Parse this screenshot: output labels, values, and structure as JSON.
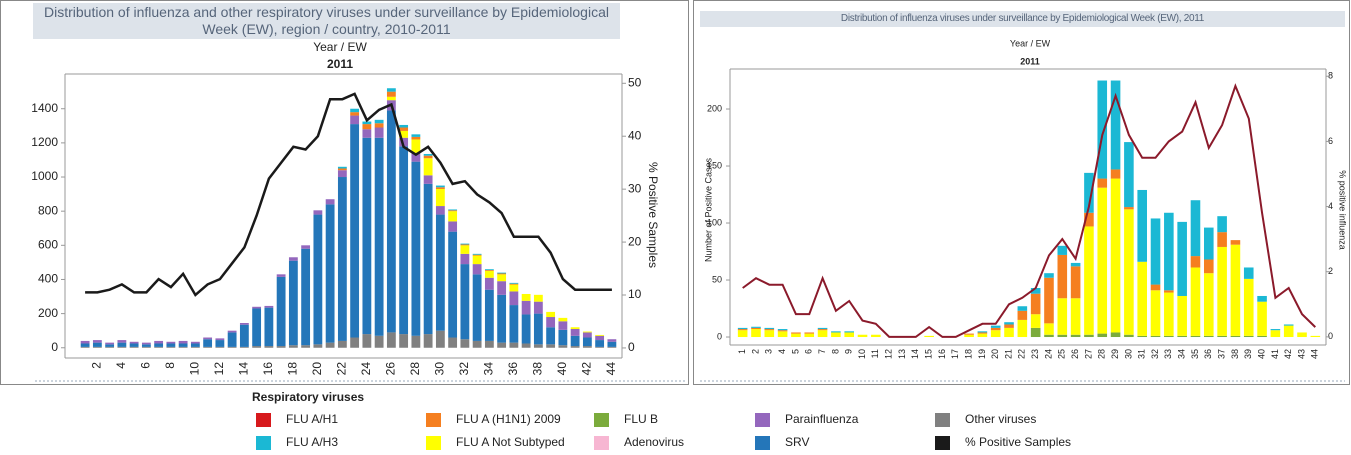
{
  "chart_data": [
    {
      "type": "bar",
      "title": "Distribution of influenza and other respiratory viruses under surveillance by Epidemiological Week (EW), region / country, 2010-2011",
      "header": "Year / EW",
      "subheader": "2011",
      "y2label": "% Positive Samples",
      "categories": [
        null,
        "2",
        null,
        "4",
        null,
        "6",
        null,
        "8",
        null,
        "10",
        null,
        "12",
        null,
        "14",
        null,
        "16",
        null,
        "18",
        null,
        "20",
        null,
        "22",
        null,
        "24",
        null,
        "26",
        null,
        "28",
        null,
        "30",
        null,
        "32",
        null,
        "34",
        null,
        "36",
        null,
        "38",
        null,
        "40",
        null,
        "42",
        null,
        "44"
      ],
      "ylim": [
        -60,
        1580
      ],
      "yticks": [
        0,
        200,
        400,
        600,
        800,
        1000,
        1200,
        1400
      ],
      "y2lim": [
        -1.9,
        51
      ],
      "y2ticks": [
        0,
        10,
        20,
        30,
        40,
        50
      ],
      "series": [
        {
          "name": "Other viruses",
          "color": "#808080",
          "values": [
            5,
            5,
            5,
            5,
            5,
            5,
            5,
            5,
            5,
            5,
            5,
            5,
            5,
            5,
            10,
            10,
            10,
            15,
            15,
            20,
            30,
            40,
            60,
            80,
            70,
            90,
            80,
            70,
            80,
            100,
            60,
            50,
            40,
            40,
            30,
            30,
            25,
            20,
            20,
            15,
            10,
            10,
            5,
            5
          ]
        },
        {
          "name": "SRV",
          "color": "#2476b9",
          "values": [
            20,
            25,
            15,
            25,
            20,
            15,
            20,
            20,
            20,
            20,
            45,
            40,
            85,
            130,
            220,
            225,
            405,
            495,
            565,
            760,
            810,
            960,
            1250,
            1150,
            1160,
            1300,
            1100,
            1020,
            880,
            680,
            620,
            440,
            390,
            300,
            280,
            220,
            170,
            180,
            100,
            90,
            60,
            50,
            40,
            30
          ]
        },
        {
          "name": "Parainfluenza",
          "color": "#9467bd",
          "values": [
            15,
            15,
            10,
            15,
            10,
            10,
            15,
            10,
            15,
            10,
            10,
            10,
            10,
            10,
            10,
            10,
            15,
            20,
            20,
            25,
            30,
            40,
            50,
            50,
            60,
            60,
            50,
            50,
            50,
            50,
            60,
            60,
            60,
            70,
            80,
            80,
            80,
            70,
            60,
            50,
            40,
            30,
            25,
            15
          ]
        },
        {
          "name": "FLU A Not Subtyped",
          "color": "#ffff00",
          "values": [
            0,
            0,
            0,
            0,
            0,
            0,
            0,
            0,
            0,
            0,
            0,
            0,
            0,
            0,
            0,
            0,
            0,
            0,
            0,
            0,
            0,
            0,
            0,
            0,
            0,
            20,
            40,
            80,
            100,
            100,
            60,
            50,
            50,
            40,
            40,
            40,
            40,
            40,
            30,
            20,
            10,
            5,
            5,
            0
          ]
        },
        {
          "name": "FLU A (H1N1) 2009",
          "color": "#f57f20",
          "values": [
            0,
            0,
            0,
            0,
            0,
            0,
            0,
            0,
            0,
            0,
            0,
            0,
            0,
            0,
            0,
            0,
            0,
            0,
            0,
            0,
            0,
            10,
            20,
            30,
            25,
            30,
            20,
            15,
            15,
            10,
            5,
            5,
            5,
            5,
            5,
            5,
            0,
            0,
            0,
            0,
            0,
            0,
            0,
            0
          ]
        },
        {
          "name": "FLU A/H3",
          "color": "#1bb8d4",
          "values": [
            0,
            0,
            0,
            0,
            0,
            0,
            0,
            0,
            0,
            0,
            0,
            0,
            0,
            0,
            0,
            0,
            0,
            0,
            0,
            0,
            0,
            10,
            20,
            15,
            20,
            20,
            15,
            15,
            10,
            10,
            5,
            5,
            5,
            5,
            5,
            5,
            0,
            0,
            0,
            0,
            0,
            0,
            0,
            0
          ]
        },
        {
          "name": "% Positive Samples",
          "type": "line",
          "axis": "y2",
          "color": "#1a1a1a",
          "values": [
            10.5,
            10.5,
            11,
            12,
            10.5,
            10.5,
            13,
            11.5,
            14,
            10,
            12,
            13,
            16,
            19,
            25,
            32,
            35,
            38,
            37.5,
            40,
            47,
            47,
            48,
            43,
            45,
            46,
            38,
            36.5,
            38,
            35,
            31,
            31.5,
            29,
            27.5,
            25.5,
            21,
            21,
            21,
            18,
            13,
            11,
            11,
            11,
            11
          ]
        }
      ]
    },
    {
      "type": "bar",
      "title": "Distribution of influenza viruses under surveillance by Epidemiological Week (EW), 2011",
      "header": "Year / EW",
      "subheader": "2011",
      "ylabel": "Number of Positive Cases",
      "y2label": "% positive influenza",
      "categories": [
        "1",
        "2",
        "3",
        "4",
        "5",
        "6",
        "7",
        "8",
        "9",
        "10",
        "11",
        "12",
        "13",
        "14",
        "15",
        "16",
        "17",
        "18",
        "19",
        "20",
        "21",
        "22",
        "23",
        "24",
        "25",
        "26",
        "27",
        "28",
        "29",
        "30",
        "31",
        "32",
        "33",
        "34",
        "35",
        "36",
        "37",
        "38",
        "39",
        "40",
        "41",
        "42",
        "43",
        "44"
      ],
      "ylim": [
        -7,
        231.6
      ],
      "yticks": [
        0,
        50,
        100,
        150,
        200
      ],
      "y2lim": [
        -0.25,
        8.1
      ],
      "y2ticks": [
        0,
        2,
        4,
        6,
        8
      ],
      "series": [
        {
          "name": "FLU B",
          "color": "#7bab3c",
          "values": [
            0,
            0,
            0,
            0,
            0,
            0,
            0,
            0,
            0,
            0,
            0,
            0,
            0,
            0,
            0,
            0,
            0,
            0,
            0,
            0,
            0,
            0,
            8,
            2,
            2,
            2,
            2,
            3,
            4,
            2,
            1,
            1,
            1,
            1,
            1,
            1,
            1,
            1,
            1,
            1,
            0,
            0,
            0,
            0
          ]
        },
        {
          "name": "FLU A Not Subtyped",
          "color": "#ffff00",
          "values": [
            6,
            7,
            6,
            5,
            3,
            3,
            6,
            4,
            4,
            2,
            2,
            0,
            0,
            0,
            1,
            0,
            0,
            2,
            3,
            6,
            8,
            15,
            12,
            10,
            32,
            32,
            95,
            128,
            135,
            110,
            65,
            40,
            38,
            35,
            60,
            55,
            78,
            80,
            50,
            30,
            6,
            10,
            4,
            1
          ]
        },
        {
          "name": "FLU A (H1N1) 2009",
          "color": "#f57f20",
          "values": [
            1,
            1,
            1,
            1,
            1,
            1,
            1,
            0,
            0,
            0,
            0,
            0,
            0,
            0,
            0,
            0,
            0,
            1,
            1,
            2,
            3,
            8,
            18,
            40,
            38,
            28,
            12,
            8,
            8,
            2,
            0,
            5,
            2,
            0,
            10,
            12,
            13,
            4,
            0,
            0,
            0,
            0,
            0,
            0
          ]
        },
        {
          "name": "FLU A/H3",
          "color": "#1bb8d4",
          "values": [
            1,
            1,
            1,
            1,
            0,
            0,
            1,
            1,
            1,
            0,
            0,
            0,
            0,
            0,
            0,
            0,
            0,
            0,
            1,
            2,
            2,
            4,
            5,
            4,
            8,
            3,
            35,
            86,
            78,
            57,
            63,
            58,
            68,
            65,
            49,
            28,
            14,
            0,
            10,
            5,
            1,
            1,
            0,
            0
          ]
        },
        {
          "name": "% Positive Samples",
          "type": "line",
          "axis": "y2",
          "color": "#8b1a2b",
          "values": [
            1.5,
            1.8,
            1.6,
            1.6,
            0.7,
            0.7,
            1.8,
            0.8,
            1.1,
            0.5,
            0.4,
            0,
            0,
            0,
            0.3,
            0,
            0,
            0.2,
            0.4,
            0.4,
            1.0,
            1.2,
            1.5,
            2.5,
            3.0,
            2.4,
            4.0,
            6.2,
            7.4,
            6.2,
            5.5,
            5.5,
            6.0,
            6.3,
            7.2,
            5.8,
            6.5,
            7.7,
            6.7,
            3.8,
            1.2,
            1.5,
            0.7,
            0.3
          ]
        }
      ]
    }
  ],
  "legend": {
    "title": "Respiratory viruses",
    "items": [
      {
        "name": "FLU A/H1",
        "color": "#d7191c"
      },
      {
        "name": "FLU A (H1N1) 2009",
        "color": "#f57f20"
      },
      {
        "name": "FLU B",
        "color": "#7bab3c"
      },
      {
        "name": "Parainfluenza",
        "color": "#9467bd"
      },
      {
        "name": "Other viruses",
        "color": "#808080"
      },
      {
        "name": "FLU A/H3",
        "color": "#1bb8d4"
      },
      {
        "name": "FLU A Not Subtyped",
        "color": "#ffff00"
      },
      {
        "name": "Adenovirus",
        "color": "#f7b6d2"
      },
      {
        "name": "SRV",
        "color": "#2476b9"
      },
      {
        "name": "% Positive Samples",
        "color": "#1a1a1a"
      }
    ]
  }
}
